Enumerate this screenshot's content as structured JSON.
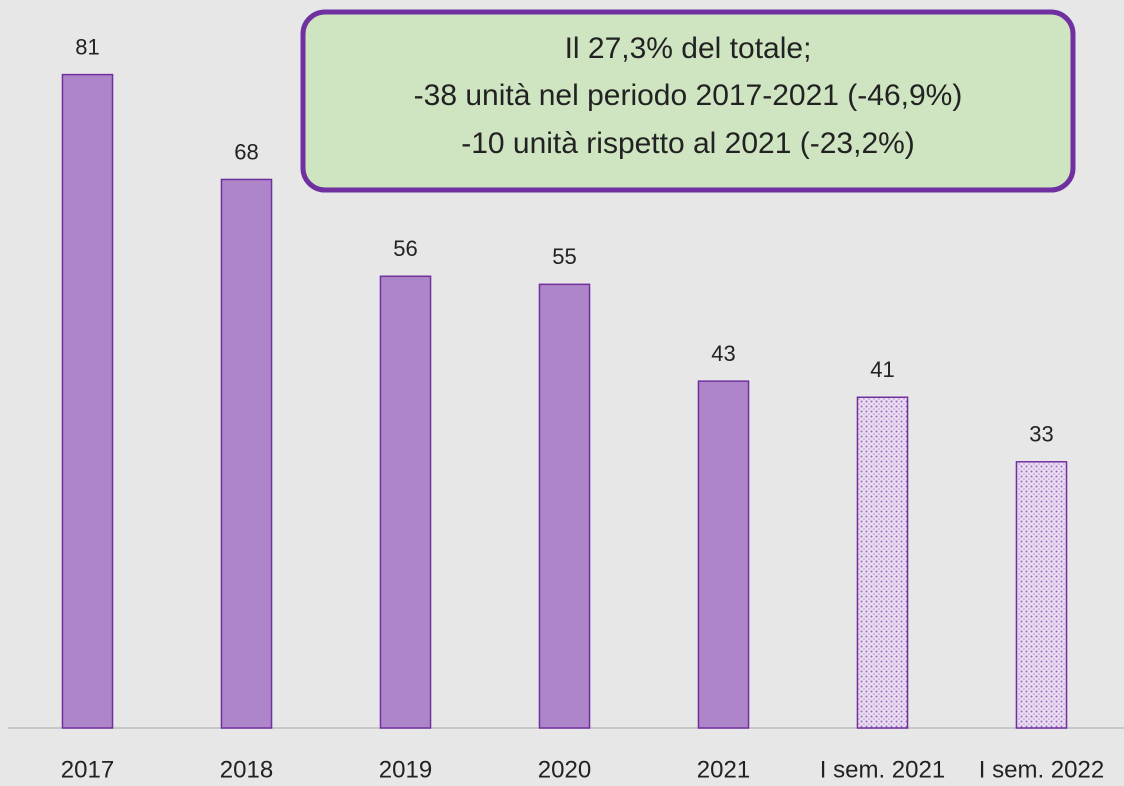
{
  "chart_data": {
    "type": "bar",
    "categories": [
      "2017",
      "2018",
      "2019",
      "2020",
      "2021",
      "I sem. 2021",
      "I sem. 2022"
    ],
    "values": [
      81,
      68,
      56,
      55,
      43,
      41,
      33
    ],
    "hatched": [
      false,
      false,
      false,
      false,
      false,
      true,
      true
    ],
    "color": "#ad85c8",
    "edge_color": "#7030a0",
    "ylim": [
      0,
      90
    ],
    "annotation": [
      "Il 27,3% del totale;",
      "-38 unità nel periodo 2017-2021 (-46,9%)",
      "-10 unità rispetto al 2021 (-23,2%)"
    ]
  }
}
